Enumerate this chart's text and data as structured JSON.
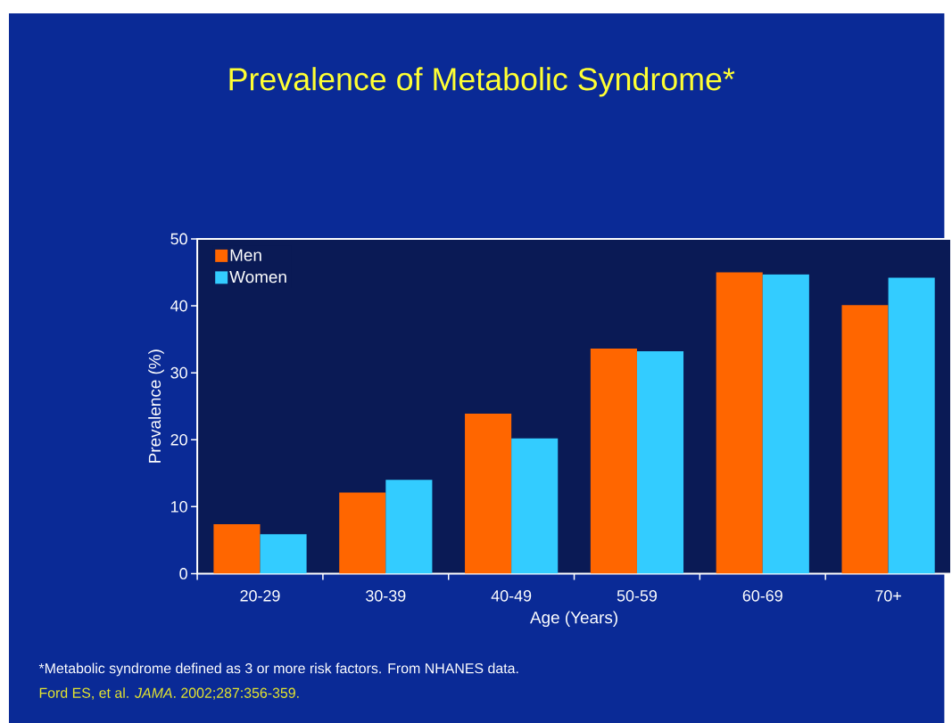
{
  "chart_data": {
    "type": "bar",
    "title": "Prevalence of Metabolic Syndrome*",
    "xlabel": "Age (Years)",
    "ylabel": "Prevalence (%)",
    "categories": [
      "20-29",
      "30-39",
      "40-49",
      "50-59",
      "60-69",
      "70+"
    ],
    "series": [
      {
        "name": "Men",
        "color": "#ff6600",
        "values": [
          7.4,
          12.1,
          23.9,
          33.6,
          45.0,
          40.1
        ]
      },
      {
        "name": "Women",
        "color": "#33ccff",
        "values": [
          5.9,
          14.0,
          20.2,
          33.2,
          44.7,
          44.2
        ]
      }
    ],
    "ylim": [
      0,
      50
    ],
    "yticks": [
      0,
      10,
      20,
      30,
      40,
      50
    ],
    "grid": false,
    "legend": "top left",
    "annotations": [
      "*Metabolic syndrome defined as 3 or more risk factors. From NHANES data.",
      "Ford ES, et al. *JAMA*. 2002;287:356-359."
    ]
  }
}
